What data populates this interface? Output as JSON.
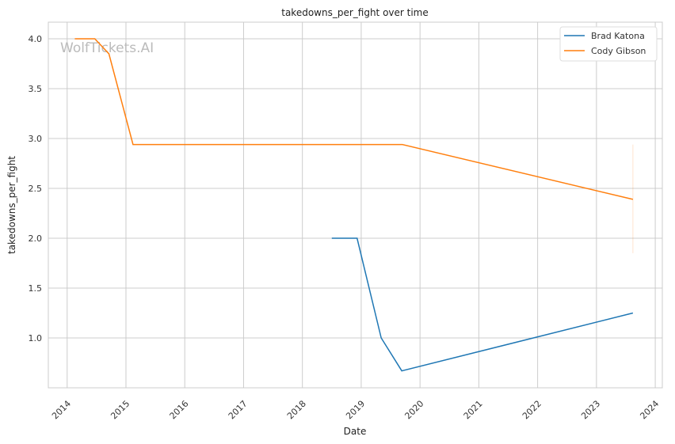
{
  "chart_data": {
    "type": "line",
    "title": "takedowns_per_fight over time",
    "xlabel": "Date",
    "ylabel": "takedowns_per_fight",
    "xlim": [
      2013.68,
      2024.12
    ],
    "ylim": [
      0.5,
      4.167
    ],
    "xticks": [
      2014,
      2015,
      2016,
      2017,
      2018,
      2019,
      2020,
      2021,
      2022,
      2023,
      2024
    ],
    "xtick_labels": [
      "2014",
      "2015",
      "2016",
      "2017",
      "2018",
      "2019",
      "2020",
      "2021",
      "2022",
      "2023",
      "2024"
    ],
    "yticks": [
      1.0,
      1.5,
      2.0,
      2.5,
      3.0,
      3.5,
      4.0
    ],
    "ytick_labels": [
      "1.0",
      "1.5",
      "2.0",
      "2.5",
      "3.0",
      "3.5",
      "4.0"
    ],
    "grid": true,
    "legend_position": "top-right",
    "watermark": "WolfTickets.AI",
    "series": [
      {
        "name": "Brad Katona",
        "color": "#1f77b4",
        "x": [
          2018.5,
          2018.93,
          2019.34,
          2019.69,
          2023.62
        ],
        "y": [
          2.0,
          2.0,
          1.0,
          0.67,
          1.25
        ]
      },
      {
        "name": "Cody Gibson",
        "color": "#ff7f0e",
        "x": [
          2014.13,
          2014.47,
          2014.71,
          2015.12,
          2019.7,
          2023.62
        ],
        "y": [
          4.0,
          4.0,
          3.85,
          2.94,
          2.94,
          2.39
        ],
        "band": {
          "x": 2023.62,
          "y": [
            1.85,
            2.94
          ]
        }
      }
    ]
  }
}
